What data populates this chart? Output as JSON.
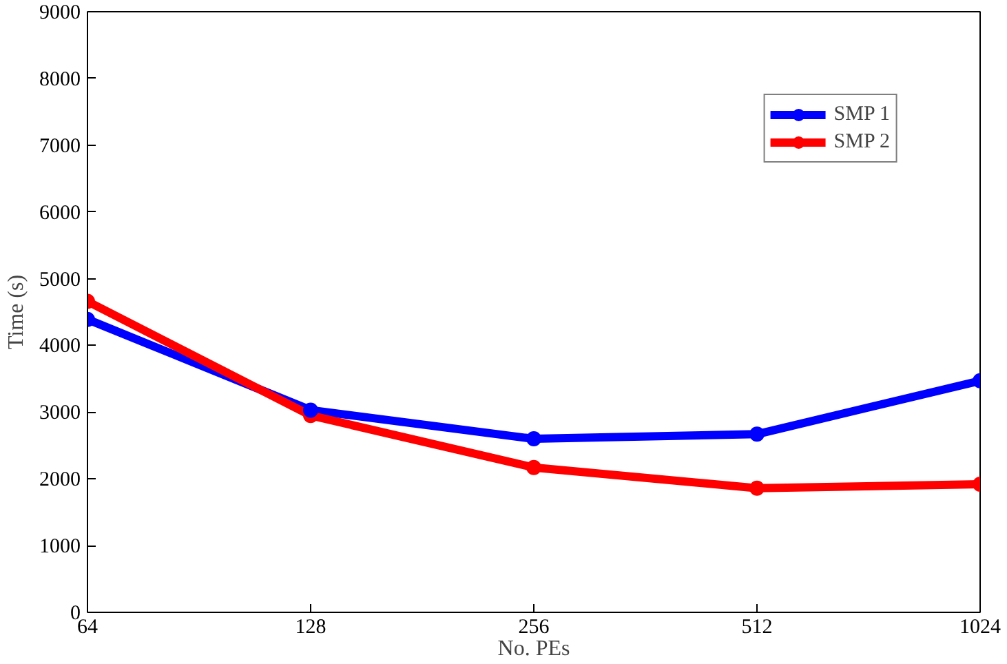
{
  "chart_data": {
    "type": "line",
    "xlabel": "No. PEs",
    "ylabel": "Time (s)",
    "categories": [
      "64",
      "128",
      "256",
      "512",
      "1024"
    ],
    "series": [
      {
        "name": "SMP 1",
        "color": "#0000ff",
        "values": [
          4390,
          3030,
          2600,
          2670,
          3470
        ]
      },
      {
        "name": "SMP 2",
        "color": "#ff0000",
        "values": [
          4660,
          2950,
          2170,
          1860,
          1920
        ]
      }
    ],
    "ylim": [
      0,
      9000
    ],
    "yticks": [
      0,
      1000,
      2000,
      3000,
      4000,
      5000,
      6000,
      7000,
      8000,
      9000
    ],
    "grid": false,
    "legend": "top right",
    "marker": "circle",
    "line_style": "solid"
  }
}
